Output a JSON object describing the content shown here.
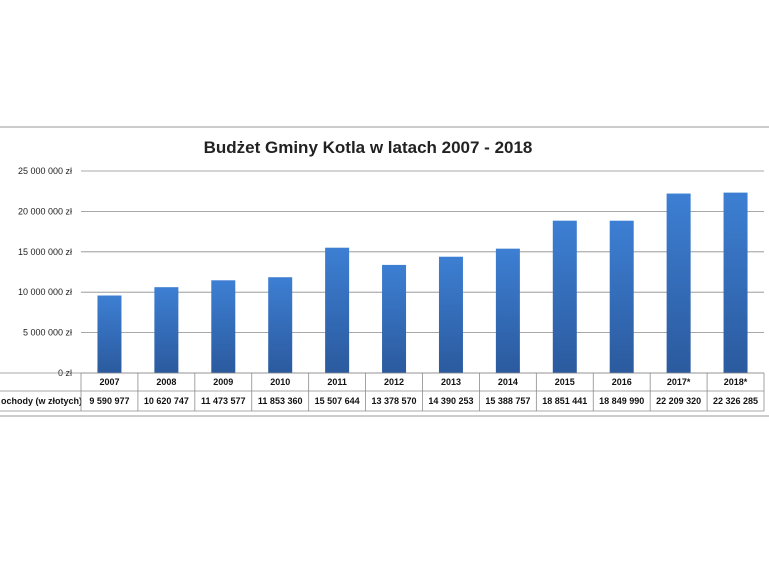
{
  "chart_data": {
    "type": "bar",
    "title": "Budżet Gminy Kotla w latach 2007 - 2018",
    "xlabel": "",
    "ylabel": "",
    "ylim": [
      0,
      25000000
    ],
    "y_ticks": [
      0,
      5000000,
      10000000,
      15000000,
      20000000,
      25000000
    ],
    "y_tick_labels": [
      "0 zł",
      "5 000 000 zł",
      "10 000 000 zł",
      "15 000 000 zł",
      "20 000 000 zł",
      "25 000 000 zł"
    ],
    "grid": true,
    "legend": "none",
    "categories": [
      "2007",
      "2008",
      "2009",
      "2010",
      "2011",
      "2012",
      "2013",
      "2014",
      "2015",
      "2016",
      "2017*",
      "2018*"
    ],
    "series": [
      {
        "name": "ochody (w złotych)",
        "values": [
          9590977,
          10620747,
          11473577,
          11853360,
          15507644,
          13378570,
          14390253,
          15388757,
          18851441,
          18849990,
          22209320,
          22326285
        ],
        "value_labels": [
          "9 590 977",
          "10 620 747",
          "11 473 577",
          "11 853 360",
          "15 507 644",
          "13 378 570",
          "14 390 253",
          "15 388 757",
          "18 851 441",
          "18 849 990",
          "22 209 320",
          "22 326 285"
        ]
      }
    ],
    "bar_color": "#3A78C9"
  }
}
